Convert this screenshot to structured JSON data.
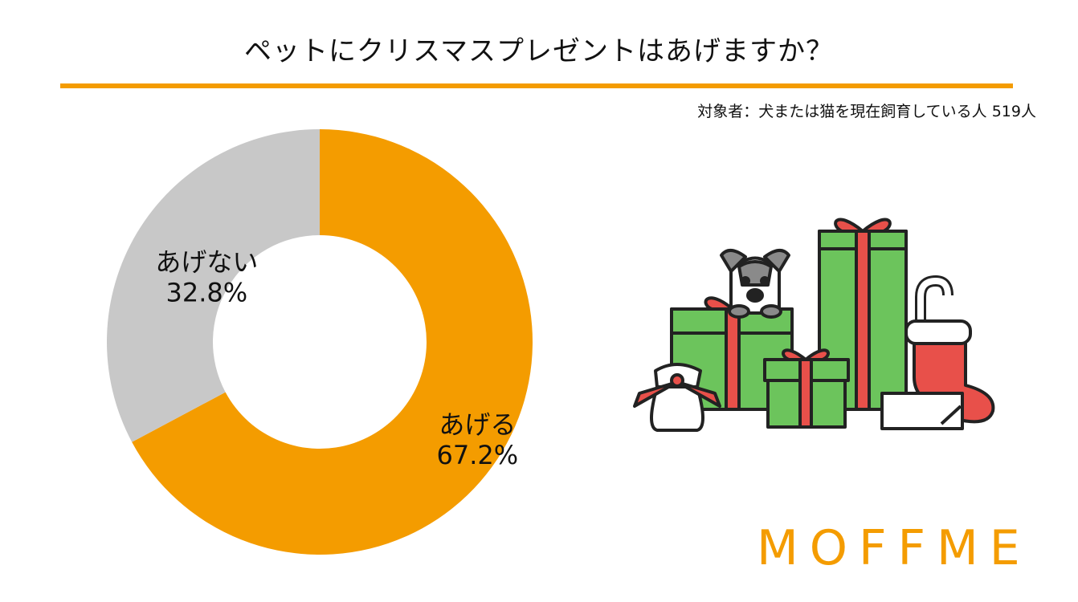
{
  "title": "ペットにクリスマスプレゼントはあげますか？",
  "note": "対象者：犬または猫を現在飼育している人 519人",
  "brand": {
    "logo_text": "MOFFME",
    "color": "#F49C00"
  },
  "colors": {
    "accent": "#F49C00",
    "gray": "#C8C8C8",
    "gift_green": "#6CC45C",
    "ribbon_red": "#E8504A"
  },
  "chart_data": {
    "type": "pie",
    "donut": true,
    "title": "ペットにクリスマスプレゼントはあげますか？",
    "start_angle_deg": 0,
    "direction": "clockwise",
    "slices": [
      {
        "label": "あげる",
        "value": 67.2,
        "value_text": "67.2%",
        "color": "#F49C00"
      },
      {
        "label": "あげない",
        "value": 32.8,
        "value_text": "32.8%",
        "color": "#C8C8C8"
      }
    ]
  },
  "illustration": {
    "icons": [
      "dog-icon",
      "gift-box-icon",
      "candy-cane-icon",
      "christmas-stocking-icon",
      "gift-bag-icon",
      "card-icon"
    ]
  }
}
